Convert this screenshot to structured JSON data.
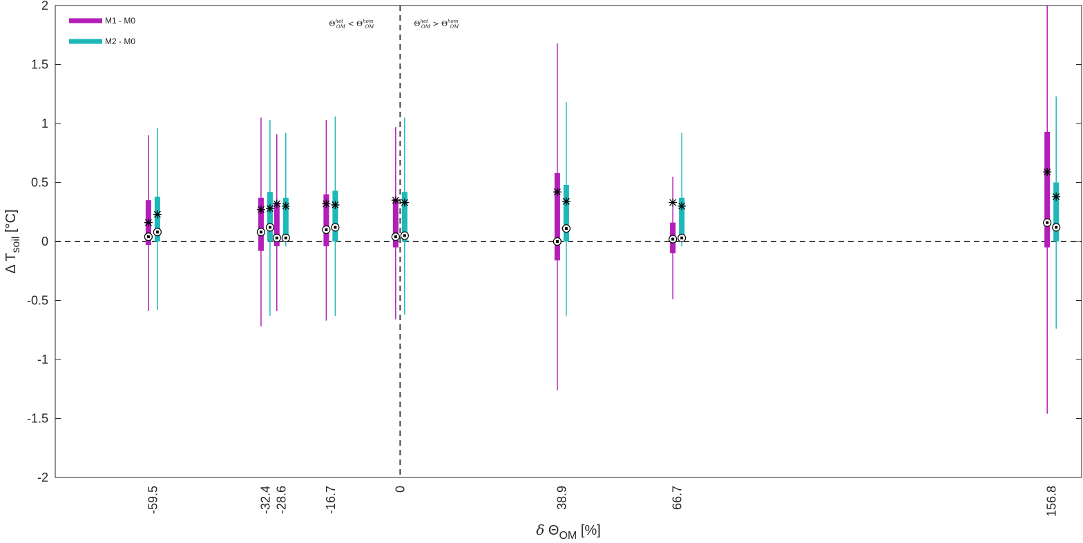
{
  "chart_data": {
    "type": "box",
    "xlabel": "δ Θ_OM [%]",
    "ylabel": "Δ T_soil [°C]",
    "ylim": [
      -2,
      2
    ],
    "yticks": [
      -2,
      -1.5,
      -1,
      -0.5,
      0,
      0.5,
      1,
      1.5,
      2
    ],
    "ytick_labels": [
      "-2",
      "-1.5",
      "-1",
      "-0.5",
      "0",
      "0.5",
      "1",
      "1.5",
      "2"
    ],
    "categories": [
      "-59.5",
      "-32.4",
      "-28.6",
      "-16.7",
      "0",
      "38.9",
      "66.7",
      "156.8"
    ],
    "category_positions": [
      -59.5,
      -32.4,
      -28.6,
      -16.7,
      0,
      38.9,
      66.7,
      156.8
    ],
    "xlim": [
      -83,
      164
    ],
    "reference_lines": [
      {
        "orientation": "horizontal",
        "value": 0,
        "style": "dashed"
      },
      {
        "orientation": "vertical",
        "value": 0,
        "style": "dashed"
      }
    ],
    "annotations": [
      {
        "text": "Θ_OM^het < Θ_OM^hom",
        "side": "left"
      },
      {
        "text": "Θ_OM^het > Θ_OM^hom",
        "side": "right"
      }
    ],
    "legend": {
      "position": "top-left",
      "entries": [
        "M1 - M0",
        "M2 - M0"
      ]
    },
    "series": [
      {
        "name": "M1 - M0",
        "color": "#B31DB8",
        "offset": -1,
        "whisker_low": [
          -0.59,
          -0.72,
          -0.59,
          -0.67,
          -0.66,
          -1.26,
          -0.49,
          -1.46
        ],
        "q1": [
          -0.03,
          -0.08,
          -0.04,
          -0.04,
          -0.05,
          -0.16,
          -0.1,
          -0.05
        ],
        "median": [
          0.04,
          0.08,
          0.03,
          0.1,
          0.04,
          0.0,
          0.02,
          0.16
        ],
        "mean": [
          0.16,
          0.27,
          0.32,
          0.32,
          0.35,
          0.42,
          0.33,
          0.59
        ],
        "q3": [
          0.35,
          0.37,
          0.33,
          0.4,
          0.36,
          0.58,
          0.16,
          0.93
        ],
        "whisker_high": [
          0.9,
          1.05,
          0.91,
          1.03,
          0.97,
          1.68,
          0.55,
          2.0
        ]
      },
      {
        "name": "M2 - M0",
        "color": "#1EB8B8",
        "offset": 1,
        "whisker_low": [
          -0.58,
          -0.63,
          -0.04,
          -0.63,
          -0.62,
          -0.63,
          -0.04,
          -0.74
        ],
        "q1": [
          0.0,
          0.0,
          0.0,
          0.0,
          0.0,
          0.0,
          0.0,
          0.0
        ],
        "median": [
          0.08,
          0.12,
          0.03,
          0.12,
          0.05,
          0.11,
          0.03,
          0.12
        ],
        "mean": [
          0.23,
          0.28,
          0.3,
          0.31,
          0.33,
          0.34,
          0.3,
          0.38
        ],
        "q3": [
          0.38,
          0.42,
          0.37,
          0.43,
          0.42,
          0.48,
          0.37,
          0.5
        ],
        "whisker_high": [
          0.96,
          1.03,
          0.92,
          1.06,
          1.05,
          1.18,
          0.92,
          1.23
        ]
      }
    ]
  }
}
